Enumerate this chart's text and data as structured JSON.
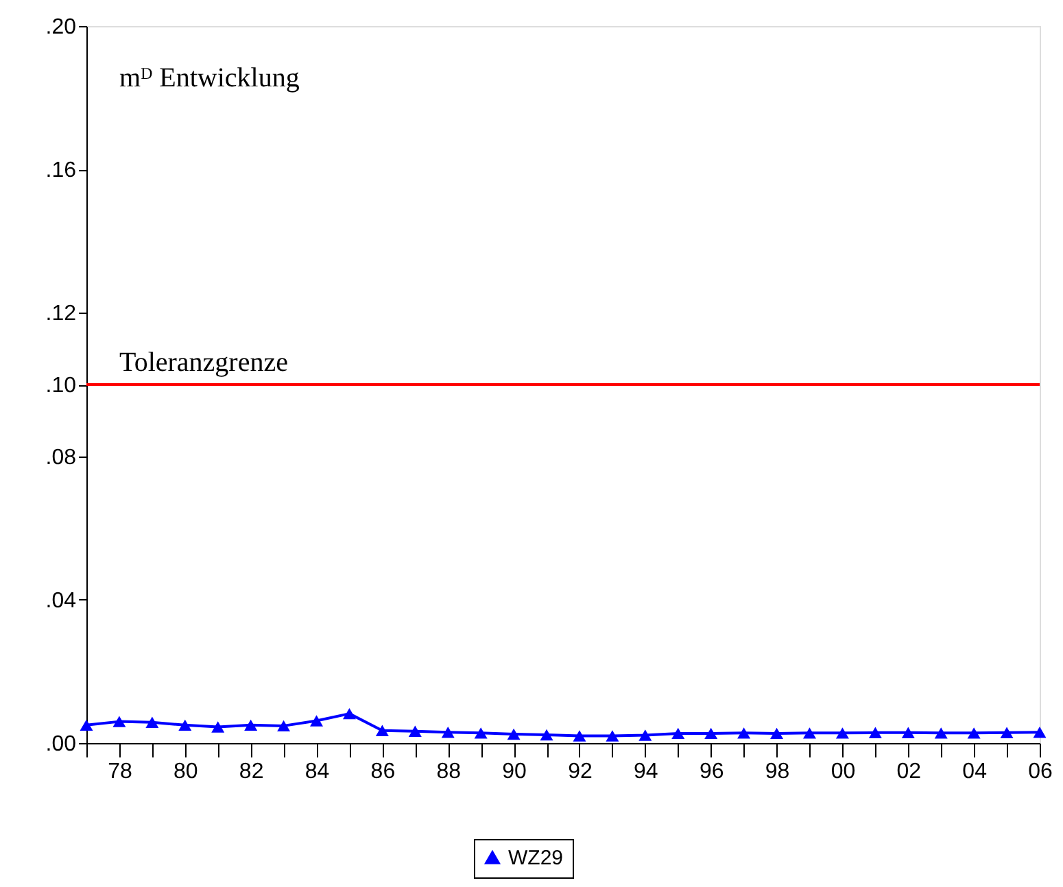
{
  "chart_data": {
    "type": "line",
    "annotations": [
      "mᴰ Entwicklung"
    ],
    "x": [
      1977,
      1978,
      1979,
      1980,
      1981,
      1982,
      1983,
      1984,
      1985,
      1986,
      1987,
      1988,
      1989,
      1990,
      1991,
      1992,
      1993,
      1994,
      1995,
      1996,
      1997,
      1998,
      1999,
      2000,
      2001,
      2002,
      2003,
      2004,
      2005,
      2006
    ],
    "series": [
      {
        "name": "WZ29",
        "color": "#0000ff",
        "values": [
          0.005,
          0.006,
          0.0058,
          0.005,
          0.0045,
          0.005,
          0.0048,
          0.0062,
          0.0082,
          0.0035,
          0.0033,
          0.003,
          0.0028,
          0.0025,
          0.0023,
          0.002,
          0.002,
          0.0022,
          0.0027,
          0.0027,
          0.0028,
          0.0027,
          0.0028,
          0.0028,
          0.0029,
          0.0029,
          0.0028,
          0.0028,
          0.0029,
          0.003
        ]
      }
    ],
    "xlim": [
      1977,
      2006
    ],
    "xticks": [
      {
        "value": 1977,
        "label": null
      },
      {
        "value": 1978,
        "label": "78"
      },
      {
        "value": 1979,
        "label": null
      },
      {
        "value": 1980,
        "label": "80"
      },
      {
        "value": 1981,
        "label": null
      },
      {
        "value": 1982,
        "label": "82"
      },
      {
        "value": 1983,
        "label": null
      },
      {
        "value": 1984,
        "label": "84"
      },
      {
        "value": 1985,
        "label": null
      },
      {
        "value": 1986,
        "label": "86"
      },
      {
        "value": 1987,
        "label": null
      },
      {
        "value": 1988,
        "label": "88"
      },
      {
        "value": 1989,
        "label": null
      },
      {
        "value": 1990,
        "label": "90"
      },
      {
        "value": 1991,
        "label": null
      },
      {
        "value": 1992,
        "label": "92"
      },
      {
        "value": 1993,
        "label": null
      },
      {
        "value": 1994,
        "label": "94"
      },
      {
        "value": 1995,
        "label": null
      },
      {
        "value": 1996,
        "label": "96"
      },
      {
        "value": 1997,
        "label": null
      },
      {
        "value": 1998,
        "label": "98"
      },
      {
        "value": 1999,
        "label": null
      },
      {
        "value": 2000,
        "label": "00"
      },
      {
        "value": 2001,
        "label": null
      },
      {
        "value": 2002,
        "label": "02"
      },
      {
        "value": 2003,
        "label": null
      },
      {
        "value": 2004,
        "label": "04"
      },
      {
        "value": 2005,
        "label": null
      },
      {
        "value": 2006,
        "label": "06"
      }
    ],
    "ylim": [
      0,
      0.2
    ],
    "yticks": [
      {
        "value": 0,
        "label": ".00"
      },
      {
        "value": 0.04,
        "label": ".04"
      },
      {
        "value": 0.08,
        "label": ".08"
      },
      {
        "value": 0.1,
        "label": ".10"
      },
      {
        "value": 0.12,
        "label": ".12"
      },
      {
        "value": 0.16,
        "label": ".16"
      },
      {
        "value": 0.2,
        "label": ".20"
      }
    ],
    "ref_lines": [
      {
        "axis": "y",
        "value": 0.1,
        "label": "Toleranzgrenze",
        "color": "#ff0000"
      }
    ],
    "marker": "triangle",
    "line_style": "solid",
    "grid": false,
    "legend": "bottom"
  }
}
